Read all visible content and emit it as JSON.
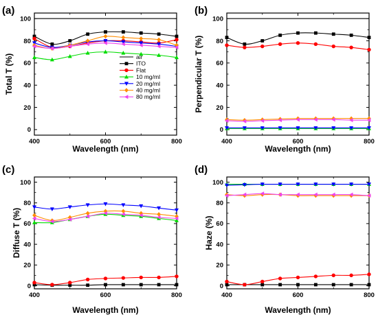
{
  "chart_data": [
    {
      "type": "line",
      "panel_label": "(a)",
      "xlabel": "Wavelength (nm)",
      "ylabel": "Total T (%)",
      "xlim": [
        400,
        800
      ],
      "ylim": [
        -5,
        105
      ],
      "xticks": [
        400,
        600,
        800
      ],
      "yticks": [
        0,
        20,
        40,
        60,
        80,
        100
      ],
      "legend_position": "center-right",
      "series": [
        {
          "name": "air",
          "color": "#000000",
          "marker": "none",
          "x": [
            400,
            450,
            500,
            550,
            600,
            650,
            700,
            750,
            800
          ],
          "y": [
            100,
            100,
            100,
            100,
            100,
            100,
            100,
            100,
            100
          ]
        },
        {
          "name": "ITO",
          "color": "#000000",
          "marker": "square",
          "x": [
            400,
            450,
            500,
            550,
            600,
            650,
            700,
            750,
            800
          ],
          "y": [
            84,
            77,
            80,
            86,
            88,
            88,
            87,
            86,
            84
          ]
        },
        {
          "name": "Flat",
          "color": "#ff0000",
          "marker": "circle",
          "x": [
            400,
            450,
            500,
            550,
            600,
            650,
            700,
            750,
            800
          ],
          "y": [
            82,
            74,
            75,
            78,
            80,
            80,
            79,
            78,
            81
          ]
        },
        {
          "name": "10 mg/ml",
          "color": "#00dd00",
          "marker": "triangle-up",
          "x": [
            400,
            450,
            500,
            550,
            600,
            650,
            700,
            750,
            800
          ],
          "y": [
            65,
            63,
            66,
            69,
            70,
            69,
            68,
            67,
            65
          ]
        },
        {
          "name": "20 mg/ml",
          "color": "#0000ff",
          "marker": "triangle-down",
          "x": [
            400,
            450,
            500,
            550,
            600,
            650,
            700,
            750,
            800
          ],
          "y": [
            78,
            74,
            76,
            79,
            80,
            79,
            78,
            77,
            75
          ]
        },
        {
          "name": "40 mg/ml",
          "color": "#ff8c00",
          "marker": "diamond",
          "x": [
            400,
            450,
            500,
            550,
            600,
            650,
            700,
            750,
            800
          ],
          "y": [
            76,
            73,
            76,
            80,
            84,
            83,
            82,
            81,
            76
          ]
        },
        {
          "name": "80 mg/ml",
          "color": "#ee44ee",
          "marker": "triangle-left",
          "x": [
            400,
            450,
            500,
            550,
            600,
            650,
            700,
            750,
            800
          ],
          "y": [
            75,
            73,
            75,
            77,
            78,
            77,
            76,
            75,
            74
          ]
        }
      ]
    },
    {
      "type": "line",
      "panel_label": "(b)",
      "xlabel": "Wavelength (nm)",
      "ylabel": "Perpendicular T (%)",
      "xlim": [
        400,
        800
      ],
      "ylim": [
        -5,
        105
      ],
      "xticks": [
        400,
        600,
        800
      ],
      "yticks": [
        0,
        20,
        40,
        60,
        80,
        100
      ],
      "series": [
        {
          "name": "air",
          "color": "#000000",
          "marker": "none",
          "x": [
            400,
            450,
            500,
            550,
            600,
            650,
            700,
            750,
            800
          ],
          "y": [
            100,
            100,
            100,
            100,
            100,
            100,
            100,
            100,
            100
          ]
        },
        {
          "name": "ITO",
          "color": "#000000",
          "marker": "square",
          "x": [
            400,
            450,
            500,
            550,
            600,
            650,
            700,
            750,
            800
          ],
          "y": [
            83,
            77,
            80,
            85,
            87,
            87,
            86,
            85,
            83
          ]
        },
        {
          "name": "Flat",
          "color": "#ff0000",
          "marker": "circle",
          "x": [
            400,
            450,
            500,
            550,
            600,
            650,
            700,
            750,
            800
          ],
          "y": [
            76,
            74,
            75,
            77,
            78,
            77,
            75,
            74,
            72
          ]
        },
        {
          "name": "10 mg/ml",
          "color": "#00dd00",
          "marker": "triangle-up",
          "x": [
            400,
            450,
            500,
            550,
            600,
            650,
            700,
            750,
            800
          ],
          "y": [
            1,
            1,
            1,
            1,
            1,
            1,
            1,
            1,
            1
          ]
        },
        {
          "name": "20 mg/ml",
          "color": "#0000ff",
          "marker": "triangle-down",
          "x": [
            400,
            450,
            500,
            550,
            600,
            650,
            700,
            750,
            800
          ],
          "y": [
            1.5,
            1.5,
            1.5,
            1.5,
            1.5,
            1.5,
            1.5,
            1.5,
            1.5
          ]
        },
        {
          "name": "40 mg/ml",
          "color": "#ff8c00",
          "marker": "diamond",
          "x": [
            400,
            450,
            500,
            550,
            600,
            650,
            700,
            750,
            800
          ],
          "y": [
            9,
            8.5,
            9,
            9.5,
            10,
            10,
            10,
            10,
            10
          ]
        },
        {
          "name": "80 mg/ml",
          "color": "#ee44ee",
          "marker": "triangle-left",
          "x": [
            400,
            450,
            500,
            550,
            600,
            650,
            700,
            750,
            800
          ],
          "y": [
            8,
            7.5,
            8,
            8.5,
            9,
            9,
            9,
            8.5,
            8.5
          ]
        }
      ]
    },
    {
      "type": "line",
      "panel_label": "(c)",
      "xlabel": "Wavelength (nm)",
      "ylabel": "Diffuse T (%)",
      "xlim": [
        400,
        800
      ],
      "ylim": [
        -3,
        105
      ],
      "xticks": [
        400,
        600,
        800
      ],
      "yticks": [
        0,
        20,
        40,
        60,
        80,
        100
      ],
      "series": [
        {
          "name": "ITO",
          "color": "#000000",
          "marker": "square",
          "x": [
            400,
            450,
            500,
            550,
            600,
            650,
            700,
            750,
            800
          ],
          "y": [
            1,
            0.5,
            0.5,
            0.5,
            1,
            1,
            1,
            1,
            1
          ]
        },
        {
          "name": "Flat",
          "color": "#ff0000",
          "marker": "circle",
          "x": [
            400,
            450,
            500,
            550,
            600,
            650,
            700,
            750,
            800
          ],
          "y": [
            3,
            1,
            3,
            6,
            7,
            7.5,
            8,
            8,
            9
          ]
        },
        {
          "name": "10 mg/ml",
          "color": "#00dd00",
          "marker": "triangle-up",
          "x": [
            400,
            450,
            500,
            550,
            600,
            650,
            700,
            750,
            800
          ],
          "y": [
            61,
            61,
            64,
            67,
            69,
            68,
            67,
            65,
            63
          ]
        },
        {
          "name": "20 mg/ml",
          "color": "#0000ff",
          "marker": "triangle-down",
          "x": [
            400,
            450,
            500,
            550,
            600,
            650,
            700,
            750,
            800
          ],
          "y": [
            76,
            74,
            76,
            78,
            79,
            78,
            77,
            75,
            73
          ]
        },
        {
          "name": "40 mg/ml",
          "color": "#ff8c00",
          "marker": "diamond",
          "x": [
            400,
            450,
            500,
            550,
            600,
            650,
            700,
            750,
            800
          ],
          "y": [
            68,
            63,
            66,
            70,
            72,
            72,
            70,
            69,
            67
          ]
        },
        {
          "name": "80 mg/ml",
          "color": "#ee44ee",
          "marker": "triangle-left",
          "x": [
            400,
            450,
            500,
            550,
            600,
            650,
            700,
            750,
            800
          ],
          "y": [
            65,
            62,
            64,
            67,
            70,
            69,
            68,
            66,
            65
          ]
        }
      ]
    },
    {
      "type": "line",
      "panel_label": "(d)",
      "xlabel": "Wavelength (nm)",
      "ylabel": "Haze (%)",
      "xlim": [
        400,
        800
      ],
      "ylim": [
        -3,
        105
      ],
      "xticks": [
        400,
        600,
        800
      ],
      "yticks": [
        0,
        20,
        40,
        60,
        80,
        100
      ],
      "series": [
        {
          "name": "ITO",
          "color": "#000000",
          "marker": "square",
          "x": [
            400,
            450,
            500,
            550,
            600,
            650,
            700,
            750,
            800
          ],
          "y": [
            1,
            1,
            1,
            1,
            1,
            1,
            1,
            1,
            1
          ]
        },
        {
          "name": "Flat",
          "color": "#ff0000",
          "marker": "circle",
          "x": [
            400,
            450,
            500,
            550,
            600,
            650,
            700,
            750,
            800
          ],
          "y": [
            4,
            1,
            4,
            7,
            8,
            9,
            10,
            10,
            11
          ]
        },
        {
          "name": "10 mg/ml",
          "color": "#00dd00",
          "marker": "triangle-up",
          "x": [
            400,
            450,
            500,
            550,
            600,
            650,
            700,
            750,
            800
          ],
          "y": [
            98,
            98,
            98,
            98,
            98,
            98,
            98,
            98,
            98
          ]
        },
        {
          "name": "20 mg/ml",
          "color": "#0000ff",
          "marker": "triangle-down",
          "x": [
            400,
            450,
            500,
            550,
            600,
            650,
            700,
            750,
            800
          ],
          "y": [
            97,
            97.5,
            98,
            98,
            98,
            98,
            98,
            98,
            98
          ]
        },
        {
          "name": "40 mg/ml",
          "color": "#ff8c00",
          "marker": "diamond",
          "x": [
            400,
            450,
            500,
            550,
            600,
            650,
            700,
            750,
            800
          ],
          "y": [
            88,
            87,
            88,
            88,
            87,
            87,
            87,
            87,
            87
          ]
        },
        {
          "name": "80 mg/ml",
          "color": "#ee44ee",
          "marker": "triangle-left",
          "x": [
            400,
            450,
            500,
            550,
            600,
            650,
            700,
            750,
            800
          ],
          "y": [
            87,
            88,
            89,
            88,
            88,
            88,
            88,
            88,
            87
          ]
        }
      ]
    }
  ]
}
